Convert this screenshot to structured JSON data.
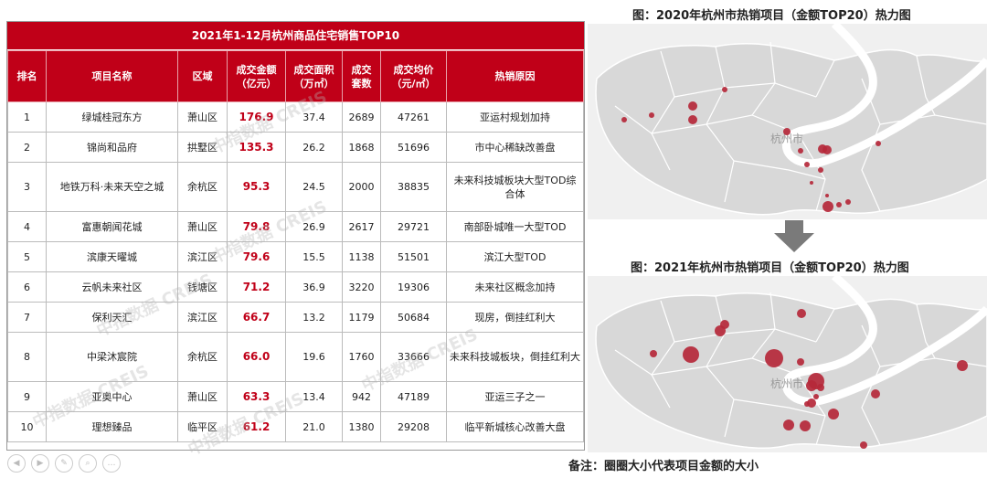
{
  "table": {
    "title": "2021年1-12月杭州商品住宅销售TOP10",
    "headers": [
      "排名",
      "项目名称",
      "区域",
      "成交金额\n（亿元）",
      "成交面积\n（万㎡）",
      "成交\n套数",
      "成交均价\n（元/㎡）",
      "热销原因"
    ],
    "rows": [
      {
        "rank": "1",
        "name": "绿城桂冠东方",
        "area": "萧山区",
        "amount": "176.9",
        "size": "37.4",
        "units": "2689",
        "price": "47261",
        "reason": "亚运村规划加持"
      },
      {
        "rank": "2",
        "name": "锦尚和品府",
        "area": "拱墅区",
        "amount": "135.3",
        "size": "26.2",
        "units": "1868",
        "price": "51696",
        "reason": "市中心稀缺改善盘"
      },
      {
        "rank": "3",
        "name": "地铁万科·未来天空之城",
        "area": "余杭区",
        "amount": "95.3",
        "size": "24.5",
        "units": "2000",
        "price": "38835",
        "reason": "未来科技城板块大型TOD综合体"
      },
      {
        "rank": "4",
        "name": "富惠朝闻花城",
        "area": "萧山区",
        "amount": "79.8",
        "size": "26.9",
        "units": "2617",
        "price": "29721",
        "reason": "南部卧城唯一大型TOD"
      },
      {
        "rank": "5",
        "name": "滨康天曜城",
        "area": "滨江区",
        "amount": "79.6",
        "size": "15.5",
        "units": "1138",
        "price": "51501",
        "reason": "滨江大型TOD"
      },
      {
        "rank": "6",
        "name": "云帆未来社区",
        "area": "钱塘区",
        "amount": "71.2",
        "size": "36.9",
        "units": "3220",
        "price": "19306",
        "reason": "未来社区概念加持"
      },
      {
        "rank": "7",
        "name": "保利天汇",
        "area": "滨江区",
        "amount": "66.7",
        "size": "13.2",
        "units": "1179",
        "price": "50684",
        "reason": "现房，倒挂红利大"
      },
      {
        "rank": "8",
        "name": "中梁沐宸院",
        "area": "余杭区",
        "amount": "66.0",
        "size": "19.6",
        "units": "1760",
        "price": "33666",
        "reason": "未来科技城板块，倒挂红利大"
      },
      {
        "rank": "9",
        "name": "亚奥中心",
        "area": "萧山区",
        "amount": "63.3",
        "size": "13.4",
        "units": "942",
        "price": "47189",
        "reason": "亚运三子之一"
      },
      {
        "rank": "10",
        "name": "理想臻品",
        "area": "临平区",
        "amount": "61.2",
        "size": "21.0",
        "units": "1380",
        "price": "29208",
        "reason": "临平新城核心改善大盘"
      }
    ]
  },
  "maps": {
    "title_2020": "图：2020年杭州市热销项目（金额TOP20）热力图",
    "title_2021": "图：2021年杭州市热销项目（金额TOP20）热力图",
    "label_city_2020": "杭州市",
    "label_city_2021": "杭州市",
    "note": "备注：圈圈大小代表项目金额的大小",
    "dot_color": "#b5283a"
  },
  "watermark": {
    "cn": "中指数据",
    "en": "CREIS"
  }
}
